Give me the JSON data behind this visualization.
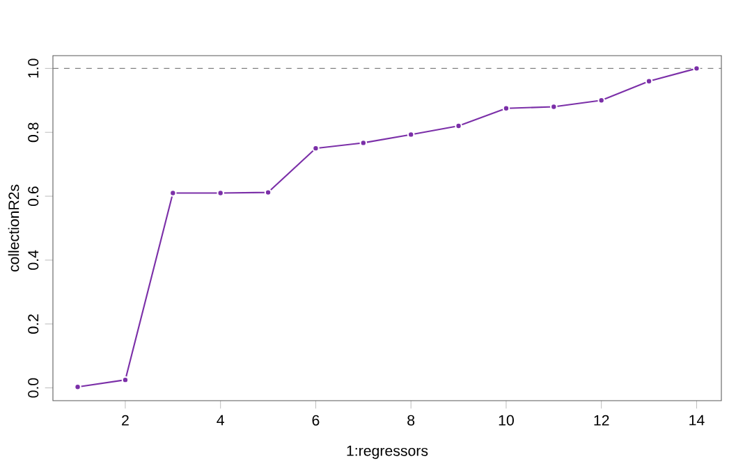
{
  "chart_data": {
    "type": "line",
    "xlabel": "1:regressors",
    "ylabel": "collectionR2s",
    "x": [
      1,
      2,
      3,
      4,
      5,
      6,
      7,
      8,
      9,
      10,
      11,
      12,
      13,
      14
    ],
    "series": [
      {
        "color": "#7b2fa8",
        "values": [
          0.003,
          0.025,
          0.61,
          0.61,
          0.612,
          0.75,
          0.767,
          0.793,
          0.82,
          0.875,
          0.88,
          0.9,
          0.96,
          1.0
        ]
      }
    ],
    "xlim": [
      0.48,
      14.52
    ],
    "ylim": [
      -0.04,
      1.04
    ],
    "xticks": [
      2,
      4,
      6,
      8,
      10,
      12,
      14
    ],
    "yticks": [
      {
        "value": 0,
        "label": "0.0"
      },
      0.2,
      0.4,
      0.6,
      0.8,
      {
        "value": 1,
        "label": "1.0"
      }
    ],
    "ref_lines": [
      {
        "axis": "y",
        "value": 1.0,
        "color": "#808080",
        "line_style": "dashed"
      }
    ],
    "marker": "circle",
    "line_style": "solid"
  }
}
